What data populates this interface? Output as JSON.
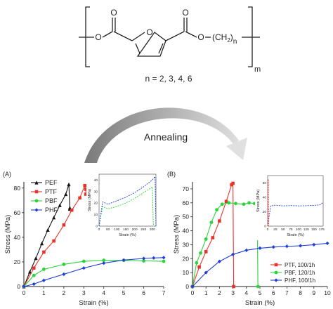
{
  "structure": {
    "ring_atom": "O",
    "ester_left": [
      "O",
      "O"
    ],
    "ester_right": [
      "O",
      "O"
    ],
    "chain_open": "(CH",
    "chain_sub_2": "2",
    "chain_close": ")",
    "chain_sub_n": "n",
    "repeat_m": "m",
    "n_values": "n = 2, 3, 4, 6"
  },
  "process_label": "Annealing",
  "colors": {
    "PEF": "#111111",
    "PTF": "#e8332b",
    "PBF": "#2bd43a",
    "PHF": "#1f3fd6",
    "arrow_dark": "#7a7a7a",
    "arrow_light": "#d9d9d9"
  },
  "chart_data": [
    {
      "type": "line",
      "panel_label": "(A)",
      "xlabel": "Strain (%)",
      "ylabel": "Stress (MPa)",
      "xlim": [
        0,
        7
      ],
      "ylim": [
        0,
        85
      ],
      "x_ticks": [
        0,
        1,
        2,
        3,
        4,
        5,
        6,
        7
      ],
      "y_ticks": [
        0,
        20,
        40,
        60,
        80
      ],
      "legend": "top-left",
      "series": [
        {
          "name": "PEF",
          "marker": "triangle",
          "x": [
            0,
            0.3,
            0.6,
            0.9,
            1.2,
            1.5,
            1.8,
            2.1,
            2.25,
            2.3,
            2.3
          ],
          "y": [
            0,
            12,
            23,
            35,
            46,
            56,
            66,
            75,
            83,
            64,
            63
          ]
        },
        {
          "name": "PTF",
          "marker": "square",
          "x": [
            0,
            0.5,
            1.0,
            1.5,
            2.0,
            2.4,
            2.8,
            3.05,
            3.1,
            3.1
          ],
          "y": [
            0,
            15,
            28,
            37,
            50,
            62,
            72,
            82,
            79,
            75
          ]
        },
        {
          "name": "PBF",
          "marker": "circle",
          "x": [
            0,
            0.5,
            1.0,
            2.0,
            3.0,
            4.0,
            5.0,
            6.0,
            7.0
          ],
          "y": [
            0,
            9,
            14,
            18,
            20.5,
            21.3,
            21.2,
            20.8,
            20.5
          ]
        },
        {
          "name": "PHF",
          "marker": "diamond",
          "x": [
            0,
            0.5,
            1.0,
            2.0,
            3.0,
            4.0,
            5.0,
            6.0,
            6.5,
            7.0
          ],
          "y": [
            0,
            2,
            5,
            10,
            15,
            19,
            21.5,
            22.8,
            23.2,
            23.5
          ]
        }
      ],
      "inset": {
        "xlabel": "Strain (%)",
        "ylabel": "Stress (MPa)",
        "xlim": [
          0,
          320
        ],
        "ylim": [
          0,
          45
        ],
        "x_ticks": [
          0,
          50,
          100,
          150,
          200,
          250,
          300
        ],
        "y_ticks": [
          0,
          10,
          20,
          30,
          40
        ],
        "series": [
          {
            "name": "PBF",
            "x": [
              0,
              20,
              50,
              100,
              150,
              200,
              250,
              290,
              300,
              305,
              310
            ],
            "y": [
              0,
              17,
              15,
              17,
              20,
              24,
              29,
              33,
              34,
              2,
              0
            ]
          },
          {
            "name": "PHF",
            "x": [
              0,
              20,
              50,
              100,
              150,
              200,
              250,
              300,
              315,
              320
            ],
            "y": [
              0,
              21,
              19,
              22,
              25,
              29,
              34,
              40,
              43,
              0
            ]
          }
        ]
      }
    },
    {
      "type": "line",
      "panel_label": "(B)",
      "xlabel": "Strain (%)",
      "ylabel": "Stress (MPa)",
      "xlim": [
        0,
        10
      ],
      "ylim": [
        0,
        75
      ],
      "x_ticks": [
        0,
        1,
        2,
        3,
        4,
        5,
        6,
        7,
        8,
        9,
        10
      ],
      "y_ticks": [
        0,
        10,
        20,
        30,
        40,
        50,
        60,
        70
      ],
      "legend": "bottom-right",
      "series": [
        {
          "name": "PTF, 100/1h",
          "marker": "square",
          "x": [
            0,
            0.5,
            1.0,
            1.5,
            2.0,
            2.5,
            2.9,
            3.0,
            3.05
          ],
          "y": [
            0,
            14,
            25,
            35,
            47,
            61,
            73,
            74,
            0
          ]
        },
        {
          "name": "PBF, 120/1h",
          "marker": "circle",
          "x": [
            0,
            0.3,
            0.6,
            1.0,
            1.4,
            1.8,
            2.2,
            2.7,
            3.2,
            3.8,
            4.2,
            4.6,
            4.8,
            4.85
          ],
          "y": [
            0,
            17,
            24,
            34,
            46,
            55,
            59,
            60,
            59.5,
            59,
            60,
            59.5,
            59,
            0
          ]
        },
        {
          "name": "PHF, 100/1h",
          "marker": "diamond",
          "x": [
            0,
            1.0,
            2.0,
            3.0,
            4.0,
            5.0,
            6.0,
            7.0,
            8.0,
            9.0,
            10.0
          ],
          "y": [
            0,
            10,
            18,
            23,
            26,
            27.5,
            28.3,
            28.8,
            29.2,
            30,
            31
          ]
        }
      ],
      "inset": {
        "xlabel": "Strain (%)",
        "ylabel": "Stress (MPa)",
        "xlim": [
          0,
          180
        ],
        "ylim": [
          0,
          70
        ],
        "x_ticks": [
          0,
          25,
          50,
          75,
          100,
          125,
          150,
          175
        ],
        "y_ticks": [
          0,
          20,
          40,
          60
        ],
        "series": [
          {
            "name": "PHF, 100/1h",
            "x": [
              0,
              10,
              25,
              50,
              75,
              100,
              125,
              150,
              170,
              180
            ],
            "y": [
              0,
              28,
              29,
              28,
              28.5,
              28,
              28.3,
              28.8,
              29.5,
              33
            ]
          },
          {
            "name": "PTF, 100/1h",
            "x": [
              0,
              2,
              3
            ],
            "y": [
              0,
              65,
              0
            ]
          }
        ]
      }
    }
  ]
}
